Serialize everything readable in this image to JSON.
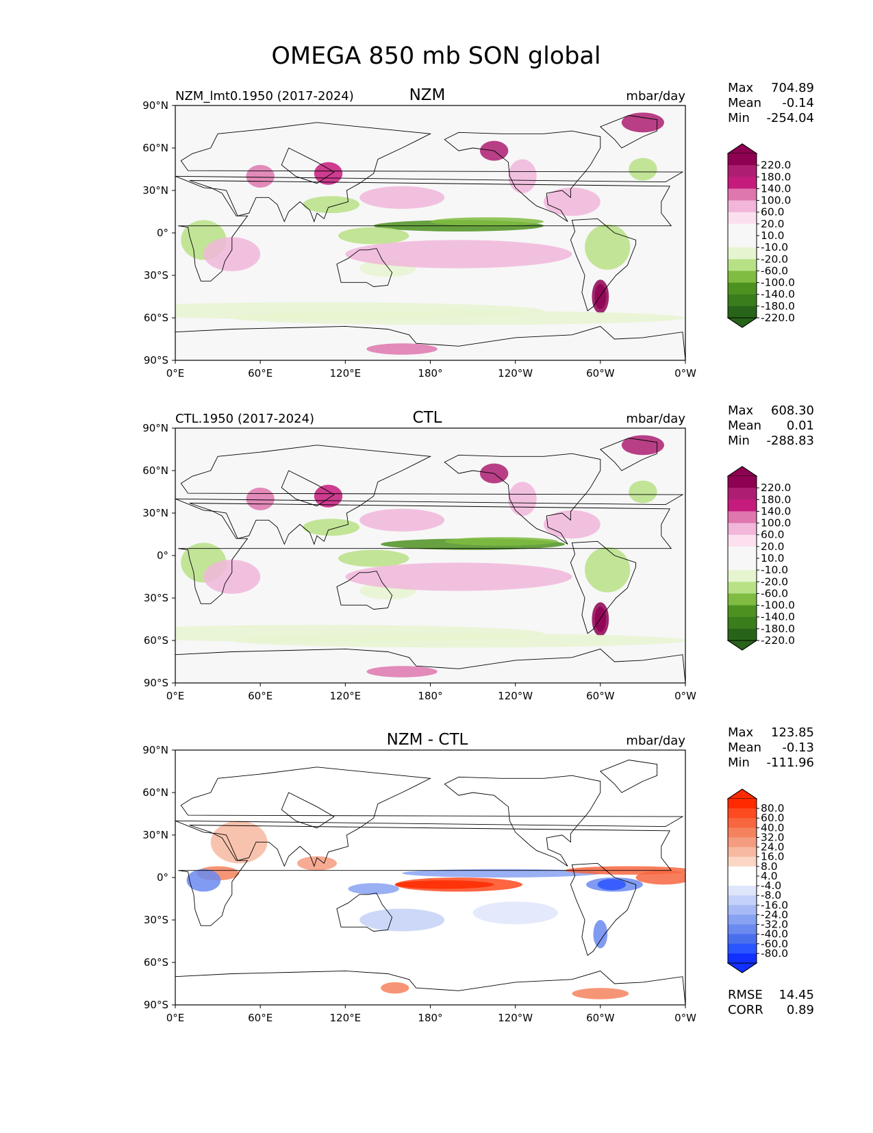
{
  "title": "OMEGA 850 mb SON global",
  "chart_data": [
    {
      "type": "heatmap",
      "left_title": "NZM_lmt0.1950 (2017-2024)",
      "center_title": "NZM",
      "units": "mbar/day",
      "stats": [
        {
          "label": "Max",
          "value": "704.89"
        },
        {
          "label": "Mean",
          "value": "-0.14"
        },
        {
          "label": "Min",
          "value": "-254.04"
        }
      ],
      "colorbar_labels": [
        "220.0",
        "180.0",
        "140.0",
        "100.0",
        "60.0",
        "20.0",
        "10.0",
        "-10.0",
        "-20.0",
        "-60.0",
        "-100.0",
        "-140.0",
        "-180.0",
        "-220.0"
      ],
      "colorbar_colors": [
        "#8e0152",
        "#ad1e72",
        "#c51b7d",
        "#de77ae",
        "#f1b6da",
        "#fde0ef",
        "#f7f7f7",
        "#f7f7f7",
        "#e6f5d0",
        "#b8e186",
        "#7fbc41",
        "#4d9221",
        "#3a7d1c",
        "#276419"
      ],
      "extend_top": "#8e0152",
      "extend_bottom": "#276419",
      "xticks": [
        "0°E",
        "60°E",
        "120°E",
        "180°",
        "120°W",
        "60°W",
        "0°W"
      ],
      "yticks": [
        "90°N",
        "60°N",
        "30°N",
        "0°",
        "30°S",
        "60°S",
        "90°S"
      ],
      "xlim": [
        0,
        360
      ],
      "ylim": [
        -90,
        90
      ]
    },
    {
      "type": "heatmap",
      "left_title": "CTL.1950 (2017-2024)",
      "center_title": "CTL",
      "units": "mbar/day",
      "stats": [
        {
          "label": "Max",
          "value": "608.30"
        },
        {
          "label": "Mean",
          "value": "0.01"
        },
        {
          "label": "Min",
          "value": "-288.83"
        }
      ],
      "colorbar_labels": [
        "220.0",
        "180.0",
        "140.0",
        "100.0",
        "60.0",
        "20.0",
        "10.0",
        "-10.0",
        "-20.0",
        "-60.0",
        "-100.0",
        "-140.0",
        "-180.0",
        "-220.0"
      ],
      "colorbar_colors": [
        "#8e0152",
        "#ad1e72",
        "#c51b7d",
        "#de77ae",
        "#f1b6da",
        "#fde0ef",
        "#f7f7f7",
        "#f7f7f7",
        "#e6f5d0",
        "#b8e186",
        "#7fbc41",
        "#4d9221",
        "#3a7d1c",
        "#276419"
      ],
      "extend_top": "#8e0152",
      "extend_bottom": "#276419",
      "xticks": [
        "0°E",
        "60°E",
        "120°E",
        "180°",
        "120°W",
        "60°W",
        "0°W"
      ],
      "yticks": [
        "90°N",
        "60°N",
        "30°N",
        "0°",
        "30°S",
        "60°S",
        "90°S"
      ],
      "xlim": [
        0,
        360
      ],
      "ylim": [
        -90,
        90
      ]
    },
    {
      "type": "heatmap",
      "left_title": "",
      "center_title": "NZM - CTL",
      "units": "mbar/day",
      "stats": [
        {
          "label": "Max",
          "value": "123.85"
        },
        {
          "label": "Mean",
          "value": "-0.13"
        },
        {
          "label": "Min",
          "value": "-111.96"
        }
      ],
      "extra_stats": [
        {
          "label": "RMSE",
          "value": "14.45"
        },
        {
          "label": "CORR",
          "value": "0.89"
        }
      ],
      "colorbar_labels": [
        "80.0",
        "60.0",
        "40.0",
        "32.0",
        "24.0",
        "16.0",
        "8.0",
        "4.0",
        "-4.0",
        "-8.0",
        "-16.0",
        "-24.0",
        "-32.0",
        "-40.0",
        "-60.0",
        "-80.0"
      ],
      "colorbar_colors": [
        "#ff2a00",
        "#fe4a20",
        "#f7663f",
        "#f4825e",
        "#f49c7f",
        "#f7b9a0",
        "#fbd6c4",
        "#ffffff",
        "#ffffff",
        "#dfe5fb",
        "#c4d1f8",
        "#a7baf5",
        "#88a2f2",
        "#6a8aef",
        "#4a6fec",
        "#2b55ff",
        "#1230ff"
      ],
      "extend_top": "#ff2a00",
      "extend_bottom": "#1230ff",
      "xticks": [
        "0°E",
        "60°E",
        "120°E",
        "180°",
        "120°W",
        "60°W",
        "0°W"
      ],
      "yticks": [
        "90°N",
        "60°N",
        "30°N",
        "0°",
        "30°S",
        "60°S",
        "90°S"
      ],
      "xlim": [
        0,
        360
      ],
      "ylim": [
        -90,
        90
      ]
    }
  ]
}
